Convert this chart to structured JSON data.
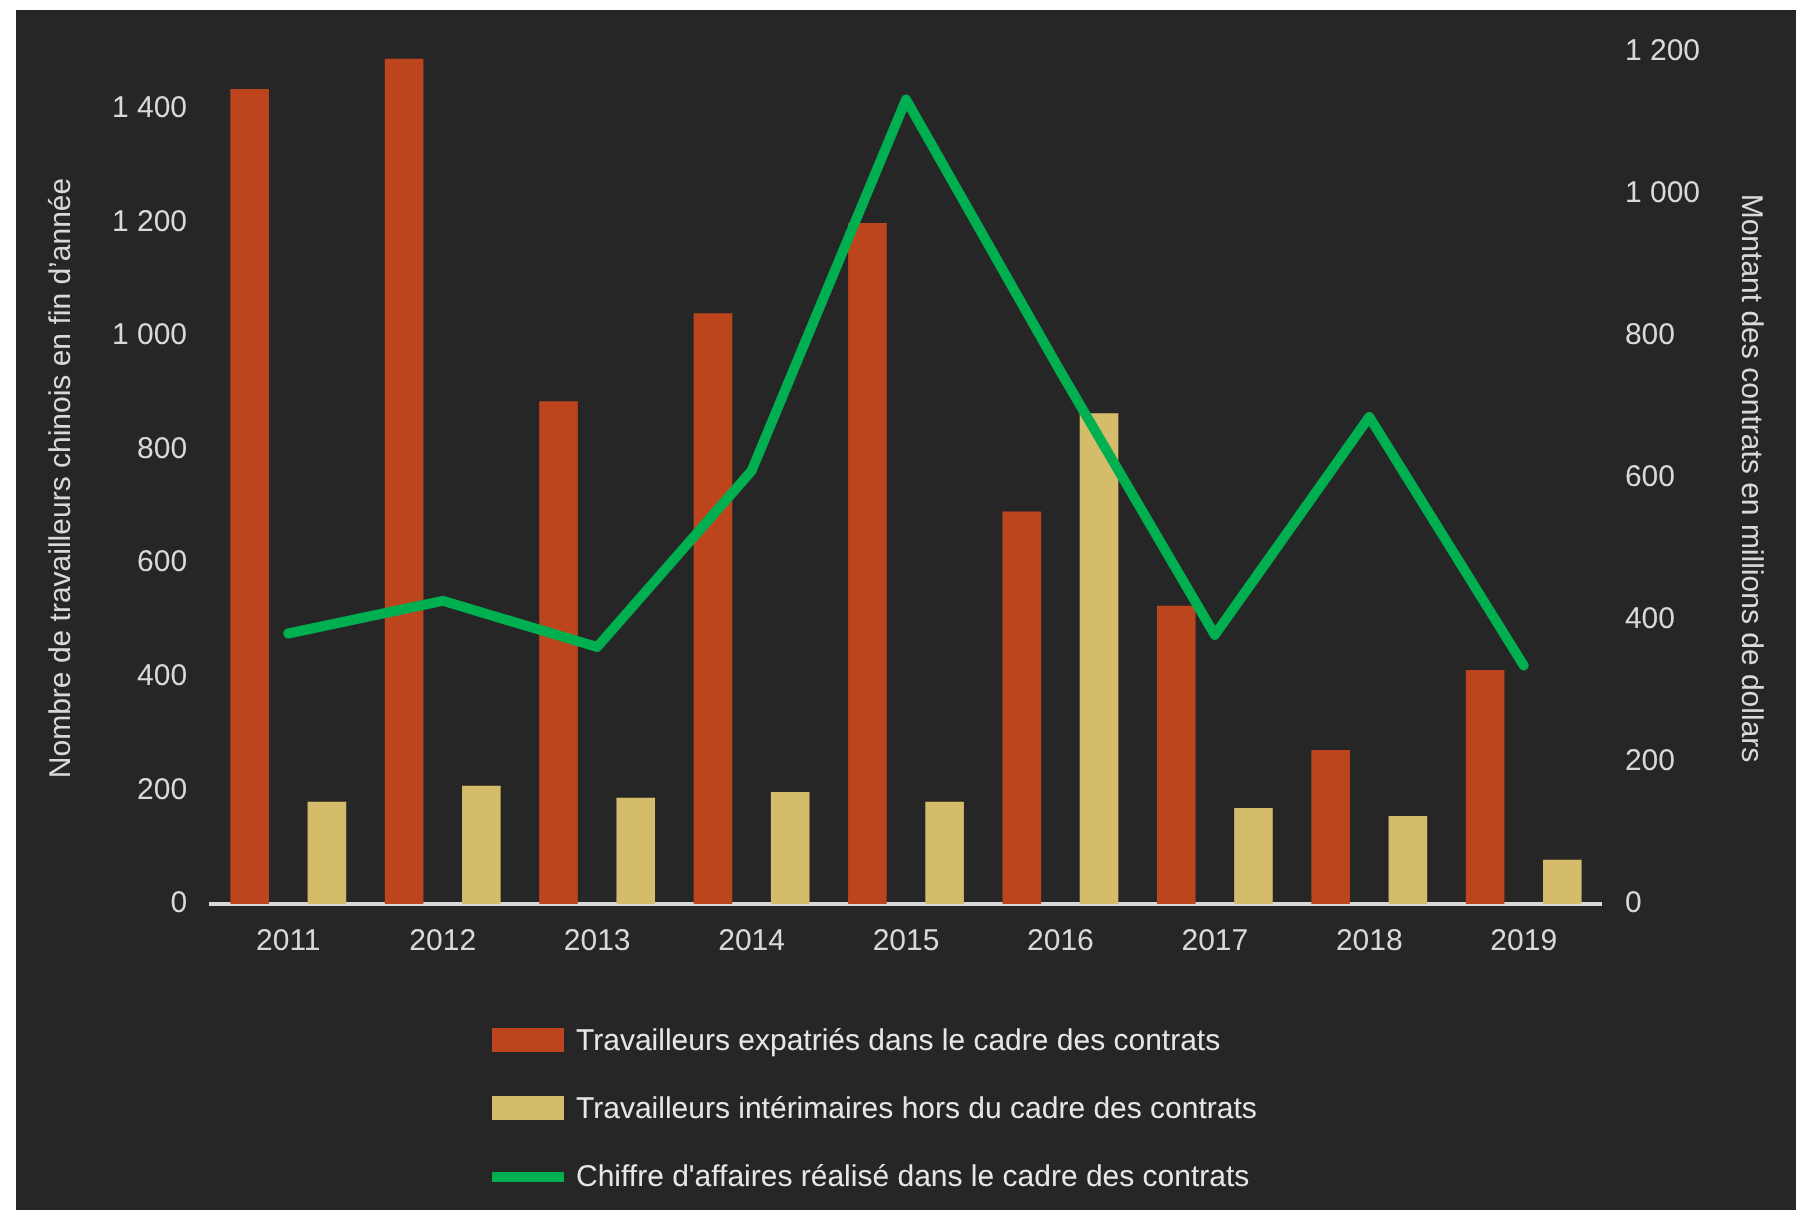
{
  "chart_data": {
    "type": "bar",
    "categories": [
      "2011",
      "2012",
      "2013",
      "2014",
      "2015",
      "2016",
      "2017",
      "2018",
      "2019"
    ],
    "ylabel": "Nombre de travailleurs chinois en fin d’année",
    "y2label": "Montant des contrats en millions de dollars",
    "ylim": [
      0,
      1500
    ],
    "yticks": [
      0,
      200,
      400,
      600,
      800,
      {
        "value": 1000,
        "label": "1 000"
      },
      {
        "value": 1200,
        "label": "1 200"
      },
      {
        "value": 1400,
        "label": "1 400"
      }
    ],
    "y2lim": [
      0,
      1200
    ],
    "y2ticks": [
      0,
      200,
      400,
      600,
      800,
      {
        "value": 1000,
        "label": "1 000"
      },
      {
        "value": 1200,
        "label": "1 200"
      }
    ],
    "grid": false,
    "legend": "bottom",
    "series": [
      {
        "name": "Travailleurs expatriés dans le cadre des contrats",
        "color": "#bc451d",
        "values": [
          1435,
          1488,
          885,
          1040,
          1199,
          691,
          525,
          271,
          412
        ]
      },
      {
        "name": "Travailleurs intérimaires hors du cadre des contrats",
        "color": "#d4bc6a",
        "values": [
          180,
          208,
          187,
          197,
          180,
          864,
          169,
          155,
          78
        ]
      },
      {
        "name": "Chiffre d'affaires réalisé dans le cadre des contrats",
        "type": "line",
        "axis": "y2",
        "color": "#00b050",
        "values": [
          381,
          427,
          362,
          610,
          1133,
          750,
          379,
          686,
          336
        ]
      }
    ]
  }
}
